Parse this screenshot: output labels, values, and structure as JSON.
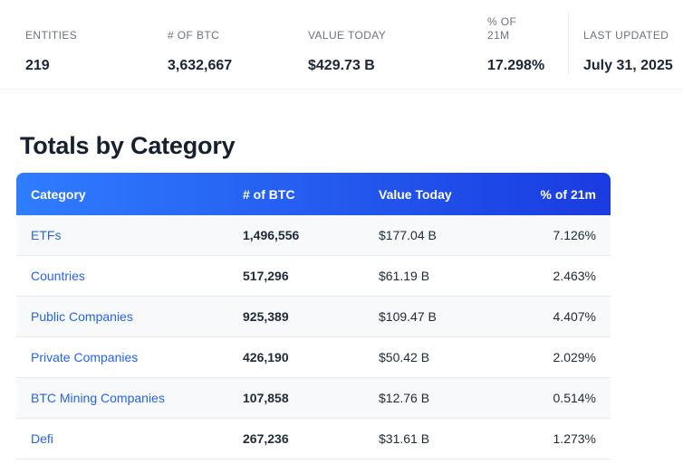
{
  "summary": {
    "stats": [
      {
        "label": "ENTITIES",
        "value": "219"
      },
      {
        "label": "# OF BTC",
        "value": "3,632,667"
      },
      {
        "label": "VALUE TODAY",
        "value": "$429.73 B"
      },
      {
        "label": "% OF 21M",
        "value": "17.298%"
      },
      {
        "label": "LAST UPDATED",
        "value": "July 31, 2025"
      }
    ]
  },
  "section": {
    "title": "Totals by Category"
  },
  "table": {
    "headers": {
      "category": "Category",
      "btc": "# of BTC",
      "value": "Value Today",
      "pct": "% of 21m"
    },
    "rows": [
      {
        "category": "ETFs",
        "btc": "1,496,556",
        "value": "$177.04 B",
        "pct": "7.126%"
      },
      {
        "category": "Countries",
        "btc": "517,296",
        "value": "$61.19 B",
        "pct": "2.463%"
      },
      {
        "category": "Public Companies",
        "btc": "925,389",
        "value": "$109.47 B",
        "pct": "4.407%"
      },
      {
        "category": "Private Companies",
        "btc": "426,190",
        "value": "$50.42 B",
        "pct": "2.029%"
      },
      {
        "category": "BTC Mining Companies",
        "btc": "107,858",
        "value": "$12.76 B",
        "pct": "0.514%"
      },
      {
        "category": "Defi",
        "btc": "267,236",
        "value": "$31.61 B",
        "pct": "1.273%"
      }
    ]
  },
  "colors": {
    "header_gradient_start": "#2f7dff",
    "header_gradient_end": "#1a3be0",
    "link_blue": "#2563eb",
    "value_navy": "#1b2537"
  }
}
